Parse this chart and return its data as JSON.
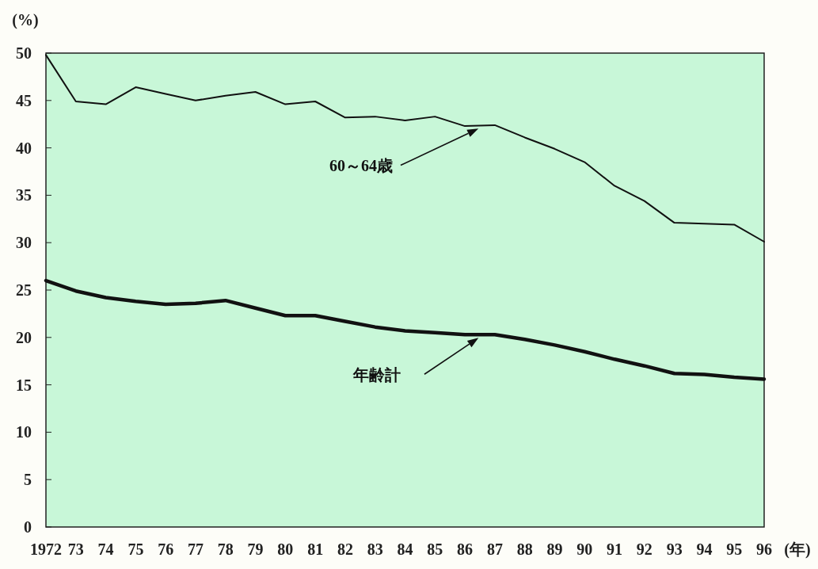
{
  "chart_data": {
    "type": "line",
    "xlabel": "(年)",
    "ylabel": "(%)",
    "x": [
      1972,
      1973,
      1974,
      1975,
      1976,
      1977,
      1978,
      1979,
      1980,
      1981,
      1982,
      1983,
      1984,
      1985,
      1986,
      1987,
      1988,
      1989,
      1990,
      1991,
      1992,
      1993,
      1994,
      1995,
      1996
    ],
    "series": [
      {
        "name": "60～64歳",
        "color": "#111111",
        "values": [
          49.8,
          44.9,
          44.6,
          46.4,
          45.7,
          45.0,
          45.5,
          45.9,
          44.6,
          44.9,
          43.2,
          43.3,
          42.9,
          43.3,
          42.3,
          42.4,
          41.1,
          39.9,
          38.5,
          36.0,
          34.4,
          32.1,
          32.0,
          31.9,
          30.1
        ]
      },
      {
        "name": "年齢計",
        "color": "#111111",
        "values": [
          26.0,
          24.9,
          24.2,
          23.8,
          23.5,
          23.6,
          23.9,
          23.1,
          22.3,
          22.3,
          21.7,
          21.1,
          20.7,
          20.5,
          20.3,
          20.3,
          19.8,
          19.2,
          18.5,
          17.7,
          17.0,
          16.2,
          16.1,
          15.8,
          15.6
        ]
      }
    ],
    "xlim": [
      1972,
      1996
    ],
    "xticks": [
      {
        "value": 1972,
        "label": "1972"
      },
      {
        "value": 1973,
        "label": "73"
      },
      {
        "value": 1974,
        "label": "74"
      },
      {
        "value": 1975,
        "label": "75"
      },
      {
        "value": 1976,
        "label": "76"
      },
      {
        "value": 1977,
        "label": "77"
      },
      {
        "value": 1978,
        "label": "78"
      },
      {
        "value": 1979,
        "label": "79"
      },
      {
        "value": 1980,
        "label": "80"
      },
      {
        "value": 1981,
        "label": "81"
      },
      {
        "value": 1982,
        "label": "82"
      },
      {
        "value": 1983,
        "label": "83"
      },
      {
        "value": 1984,
        "label": "84"
      },
      {
        "value": 1985,
        "label": "85"
      },
      {
        "value": 1986,
        "label": "86"
      },
      {
        "value": 1987,
        "label": "87"
      },
      {
        "value": 1988,
        "label": "88"
      },
      {
        "value": 1989,
        "label": "89"
      },
      {
        "value": 1990,
        "label": "90"
      },
      {
        "value": 1991,
        "label": "91"
      },
      {
        "value": 1992,
        "label": "92"
      },
      {
        "value": 1993,
        "label": "93"
      },
      {
        "value": 1994,
        "label": "94"
      },
      {
        "value": 1995,
        "label": "95"
      },
      {
        "value": 1996,
        "label": "96"
      }
    ],
    "ylim": [
      0,
      50
    ],
    "yticks": [
      0,
      5,
      10,
      15,
      20,
      25,
      30,
      35,
      40,
      45,
      50
    ],
    "grid": false,
    "marker": "none",
    "line_style": "solid"
  }
}
